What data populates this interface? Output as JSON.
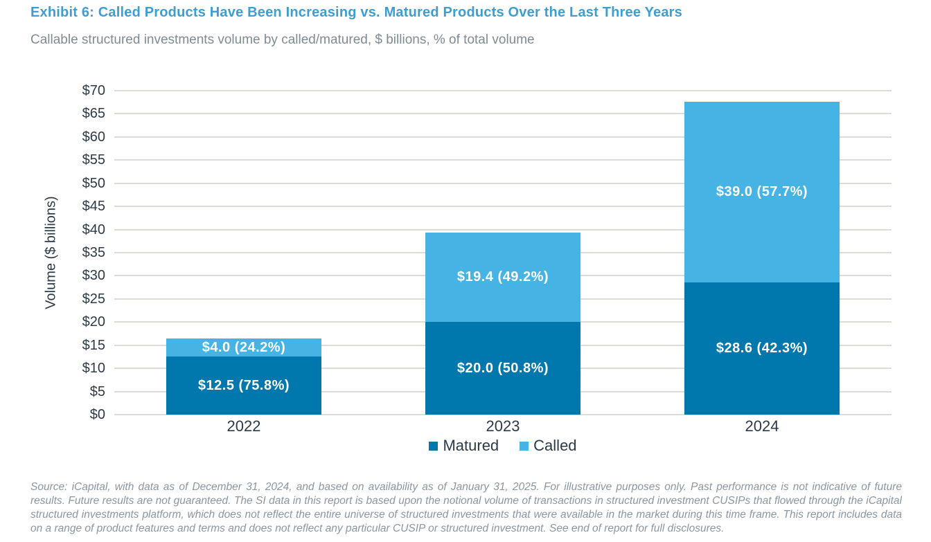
{
  "header": {
    "title": "Exhibit 6: Called Products Have Been Increasing vs. Matured Products Over the Last Three Years",
    "subtitle": "Callable structured investments volume by called/matured, $ billions, % of total volume"
  },
  "chart_data": {
    "type": "bar",
    "stacked": true,
    "title": "Exhibit 6: Called Products Have Been Increasing vs. Matured Products Over the Last Three Years",
    "categories": [
      "2022",
      "2023",
      "2024"
    ],
    "series": [
      {
        "name": "Matured",
        "color": "#0077AD",
        "values": [
          12.5,
          20.0,
          28.6
        ],
        "labels": [
          "$12.5 (75.8%)",
          "$20.0 (50.8%)",
          "$28.6 (42.3%)"
        ]
      },
      {
        "name": "Called",
        "color": "#45B4E4",
        "values": [
          4.0,
          19.4,
          39.0
        ],
        "labels": [
          "$4.0 (24.2%)",
          "$19.4 (49.2%)",
          "$39.0 (57.7%)"
        ]
      }
    ],
    "xlabel": "",
    "ylabel": "Volume ($ billions)",
    "ylim": [
      0,
      70
    ],
    "ytick_step": 5,
    "ytick_prefix": "$",
    "grid": true,
    "gridline_color": "#DCDCD6",
    "legend_position": "bottom",
    "bar_width_frac": 0.6
  },
  "legend": {
    "items": [
      {
        "label": "Matured",
        "color": "#0077AD"
      },
      {
        "label": "Called",
        "color": "#45B4E4"
      }
    ]
  },
  "colors": {
    "title_blue": "#3E9ED2",
    "subtitle_gray": "#7E8B93",
    "axis_text": "#2C3A47",
    "source_gray": "#8A96A0"
  },
  "source": {
    "text": "Source: iCapital, with data as of December 31, 2024, and based on availability as of January 31, 2025. For illustrative purposes only. Past performance is not indicative of future results. Future results are not guaranteed. The SI data in this report is based upon the notional volume of transactions in structured investment CUSIPs that flowed through the iCapital structured investments platform, which does not reflect the entire universe of structured investments that were available in the market during this time frame. This report includes data on a range of product features and terms and does not reflect any particular CUSIP or structured investment. See end of report for full disclosures."
  }
}
